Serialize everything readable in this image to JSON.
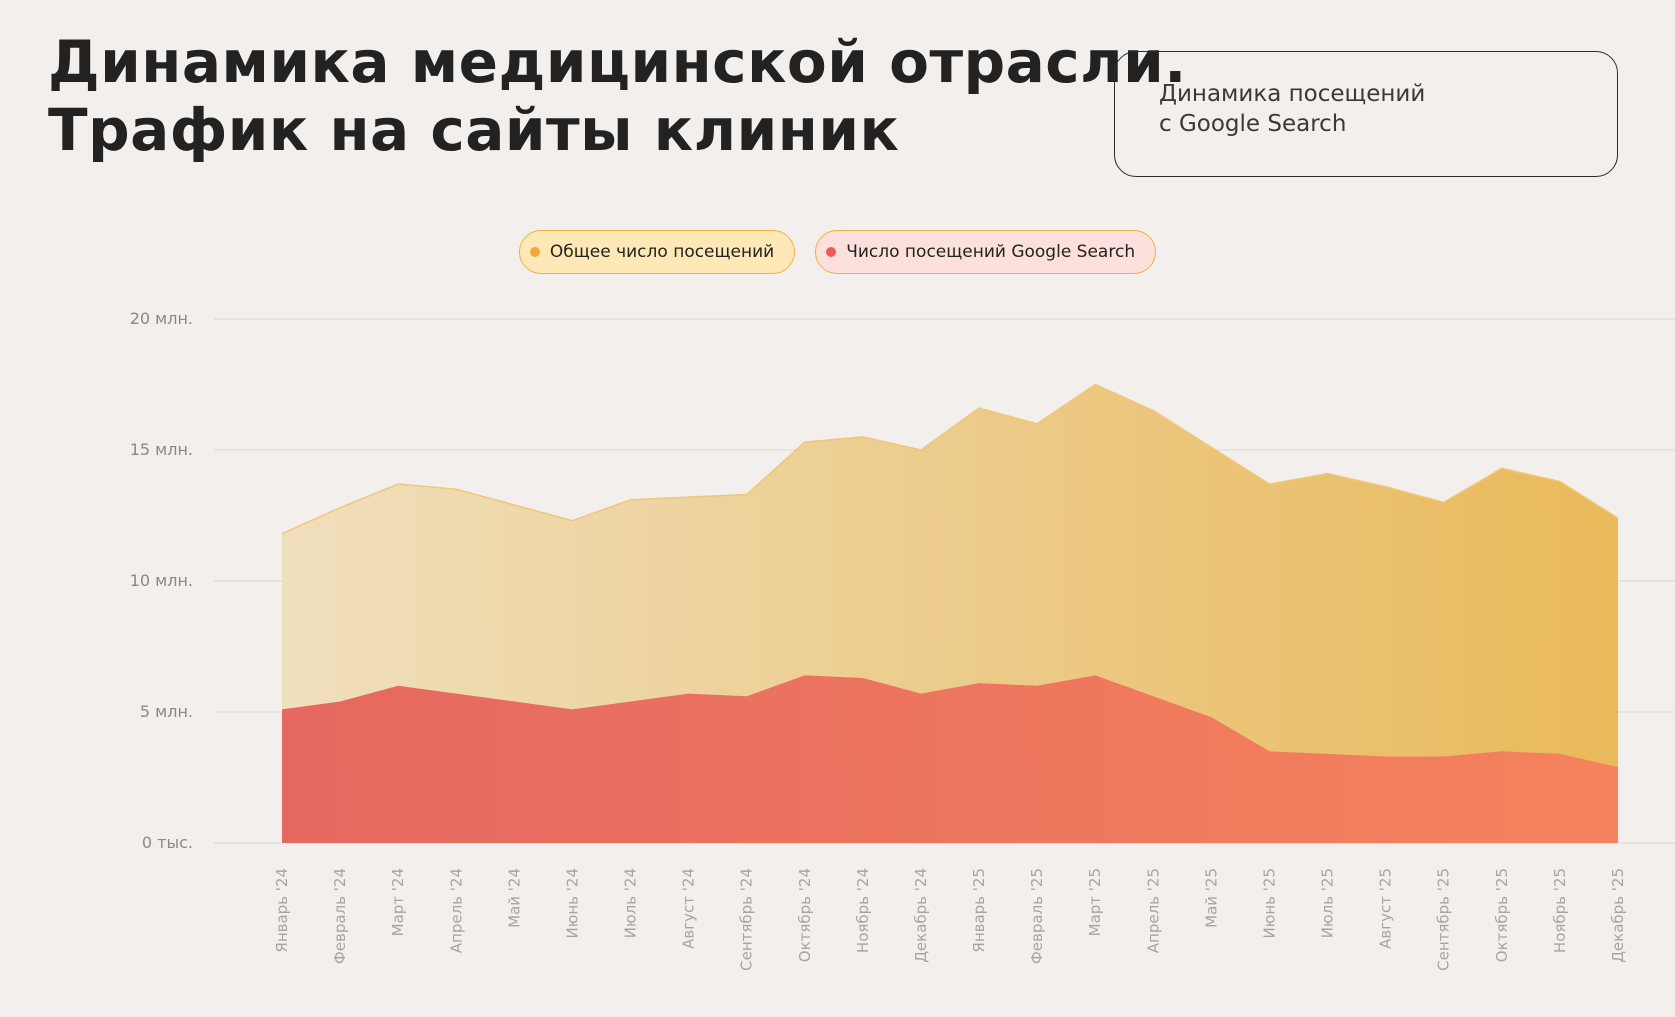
{
  "header": {
    "title_line1": "Динамика медицинской отрасли.",
    "title_line2": "Трафик на сайты клиник",
    "info_line1": "Динамика посещений",
    "info_line2": "с Google Search"
  },
  "colors": {
    "total": "#e9b95a",
    "total_light": "#f0dfbd",
    "google": "#e4625c",
    "google_light": "#f5805c",
    "total_dot": "#efa93a",
    "google_dot": "#ee5a5a"
  },
  "chart_data": {
    "type": "area",
    "title": "Динамика посещений с Google Search",
    "xlabel": "",
    "ylabel": "",
    "ylim": [
      0,
      20000000
    ],
    "yticks": [
      0,
      5000000,
      10000000,
      15000000,
      20000000
    ],
    "ytick_labels": [
      "0 тыс.",
      "5 млн.",
      "10 млн.",
      "15 млн.",
      "20 млн."
    ],
    "grid": true,
    "legend_position": "top-center",
    "categories": [
      "Январь '24",
      "Февраль '24",
      "Март '24",
      "Апрель '24",
      "Май '24",
      "Июнь '24",
      "Июль '24",
      "Август '24",
      "Сентябрь '24",
      "Октябрь '24",
      "Ноябрь '24",
      "Декабрь '24",
      "Январь '25",
      "Февраль '25",
      "Март '25",
      "Апрель '25",
      "Май '25",
      "Июнь '25",
      "Июль '25",
      "Август '25",
      "Сентябрь '25",
      "Октябрь '25",
      "Ноябрь '25",
      "Декабрь '25"
    ],
    "series": [
      {
        "name": "Общее число посещений",
        "values": [
          11800000,
          12800000,
          13700000,
          13500000,
          12900000,
          12300000,
          13100000,
          13200000,
          13300000,
          15300000,
          15500000,
          15000000,
          16600000,
          16000000,
          17500000,
          16500000,
          15100000,
          13700000,
          14100000,
          13600000,
          13000000,
          14300000,
          13800000,
          12400000
        ]
      },
      {
        "name": "Число посещений Google Search",
        "values": [
          5100000,
          5400000,
          6000000,
          5700000,
          5400000,
          5100000,
          5400000,
          5700000,
          5600000,
          6400000,
          6300000,
          5700000,
          6100000,
          6000000,
          6400000,
          5600000,
          4800000,
          3500000,
          3400000,
          3300000,
          3300000,
          3500000,
          3400000,
          2900000
        ]
      }
    ]
  }
}
